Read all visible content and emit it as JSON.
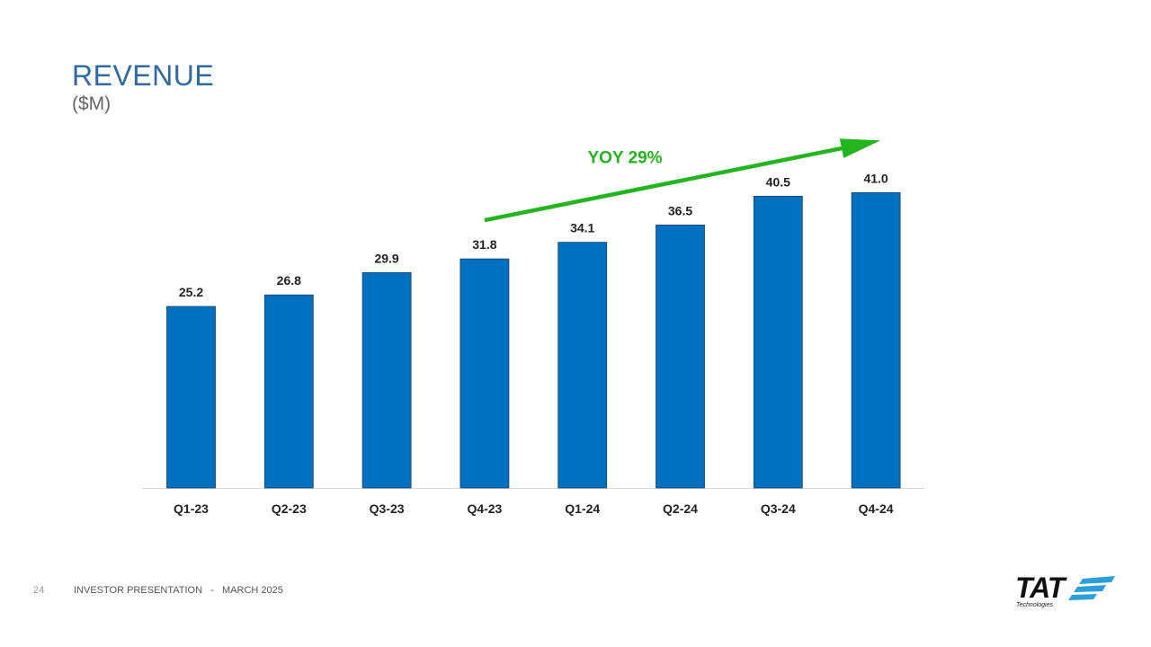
{
  "slide": {
    "title": "REVENUE",
    "subtitle": "($M)"
  },
  "chart_data": {
    "type": "bar",
    "categories": [
      "Q1-23",
      "Q2-23",
      "Q3-23",
      "Q4-23",
      "Q1-24",
      "Q2-24",
      "Q3-24",
      "Q4-24"
    ],
    "values": [
      25.2,
      26.8,
      29.9,
      31.8,
      34.1,
      36.5,
      40.5,
      41.0
    ],
    "value_labels": [
      "25.2",
      "26.8",
      "29.9",
      "31.8",
      "34.1",
      "36.5",
      "40.5",
      "41.0"
    ],
    "ylim": [
      0,
      55
    ],
    "grid": false,
    "bar_color": "#0070c0",
    "annotation": {
      "text": "YOY 29%",
      "color": "#22b51e",
      "from_category": "Q4-23",
      "to_category": "Q4-24"
    }
  },
  "footer": {
    "page_number": "24",
    "text": "INVESTOR PRESENTATION   -   MARCH 2025"
  },
  "logo": {
    "lettering": "TAT",
    "sub": "Technologies",
    "stripe_color": "#2a9fd8"
  }
}
